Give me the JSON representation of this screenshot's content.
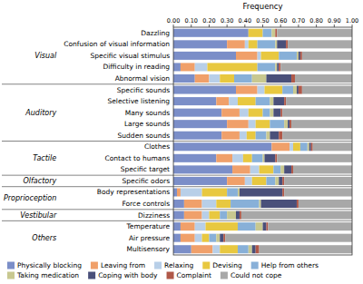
{
  "chart_data": {
    "type": "bar",
    "orientation": "horizontal",
    "stacked": true,
    "grid": false,
    "legend": "bottom",
    "xlabel": "Frequency",
    "categories": [
      "Dazzling",
      "Confusion of visual information",
      "Specific visual stimulus",
      "Difficulty in reading",
      "Abnormal vision",
      "Specific sounds",
      "Selective listening",
      "Many sounds",
      "Large sounds",
      "Sudden sounds",
      "Clothes",
      "Contact to humans",
      "Specific target",
      "Specific odors",
      "Body representations",
      "Force controls",
      "Dizziness",
      "Temperature",
      "Air pressure",
      "Multisensory"
    ],
    "groups": [
      "Visual",
      "Visual",
      "Visual",
      "Visual",
      "Visual",
      "Auditory",
      "Auditory",
      "Auditory",
      "Auditory",
      "Auditory",
      "Tactile",
      "Tactile",
      "Tactile",
      "Olfactory",
      "Proprioception",
      "Proprioception",
      "Vestibular",
      "Others",
      "Others",
      "Others"
    ],
    "series": [
      {
        "name": "Physically blocking",
        "color": "#7b8ec8",
        "values": [
          0.42,
          0.3,
          0.35,
          0.04,
          0.12,
          0.35,
          0.24,
          0.27,
          0.3,
          0.27,
          0.55,
          0.24,
          0.33,
          0.3,
          0.02,
          0.06,
          0.06,
          0.04,
          0.04,
          0.1
        ]
      },
      {
        "name": "Leaving from",
        "color": "#f0a06a",
        "values": [
          0.0,
          0.1,
          0.12,
          0.08,
          0.08,
          0.12,
          0.07,
          0.1,
          0.12,
          0.1,
          0.1,
          0.09,
          0.1,
          0.1,
          0.02,
          0.1,
          0.1,
          0.08,
          0.08,
          0.12
        ]
      },
      {
        "name": "Relaxing",
        "color": "#b8cfe8",
        "values": [
          0.0,
          0.02,
          0.02,
          0.07,
          0.06,
          0.04,
          0.05,
          0.05,
          0.04,
          0.04,
          0.02,
          0.06,
          0.05,
          0.04,
          0.12,
          0.08,
          0.04,
          0.06,
          0.04,
          0.04
        ]
      },
      {
        "name": "Devising",
        "color": "#e8c840",
        "values": [
          0.08,
          0.05,
          0.1,
          0.28,
          0.08,
          0.1,
          0.1,
          0.08,
          0.08,
          0.05,
          0.04,
          0.05,
          0.08,
          0.08,
          0.14,
          0.08,
          0.06,
          0.18,
          0.04,
          0.1
        ]
      },
      {
        "name": "Help from others",
        "color": "#88b0d8",
        "values": [
          0.05,
          0.1,
          0.1,
          0.1,
          0.1,
          0.06,
          0.08,
          0.04,
          0.08,
          0.06,
          0.04,
          0.06,
          0.04,
          0.05,
          0.06,
          0.16,
          0.04,
          0.1,
          0.04,
          0.06
        ]
      },
      {
        "name": "Taking medication",
        "color": "#c8c890",
        "values": [
          0.02,
          0.01,
          0.01,
          0.01,
          0.08,
          0.02,
          0.02,
          0.02,
          0.02,
          0.02,
          0.01,
          0.01,
          0.02,
          0.02,
          0.01,
          0.01,
          0.05,
          0.04,
          0.02,
          0.02
        ]
      },
      {
        "name": "Coping with body",
        "color": "#4a507a",
        "values": [
          0.0,
          0.05,
          0.01,
          0.01,
          0.14,
          0.01,
          0.06,
          0.04,
          0.01,
          0.05,
          0.01,
          0.06,
          0.04,
          0.02,
          0.24,
          0.2,
          0.02,
          0.02,
          0.02,
          0.02
        ]
      },
      {
        "name": "Complaint",
        "color": "#b05848",
        "values": [
          0.01,
          0.01,
          0.01,
          0.01,
          0.02,
          0.02,
          0.01,
          0.01,
          0.01,
          0.02,
          0.01,
          0.01,
          0.01,
          0.01,
          0.01,
          0.01,
          0.01,
          0.01,
          0.01,
          0.02
        ]
      },
      {
        "name": "Could not cope",
        "color": "#a8a8a8",
        "values": [
          0.42,
          0.36,
          0.28,
          0.4,
          0.32,
          0.28,
          0.37,
          0.39,
          0.34,
          0.39,
          0.22,
          0.42,
          0.33,
          0.38,
          0.38,
          0.3,
          0.62,
          0.47,
          0.71,
          0.52
        ]
      }
    ],
    "xlim": [
      0.0,
      1.0
    ],
    "xticks": [
      {
        "value": 0.0,
        "label": "0.00"
      },
      {
        "value": 0.1,
        "label": "0.10"
      },
      {
        "value": 0.2,
        "label": "0.20"
      },
      {
        "value": 0.3,
        "label": "0.30"
      },
      {
        "value": 0.4,
        "label": "0.40"
      },
      {
        "value": 0.5,
        "label": "0.50"
      },
      {
        "value": 0.6,
        "label": "0.60"
      },
      {
        "value": 0.7,
        "label": "0.70"
      },
      {
        "value": 0.8,
        "label": "0.80"
      },
      {
        "value": 0.9,
        "label": "0.90"
      },
      {
        "value": 1.0,
        "label": "1.00"
      }
    ]
  }
}
